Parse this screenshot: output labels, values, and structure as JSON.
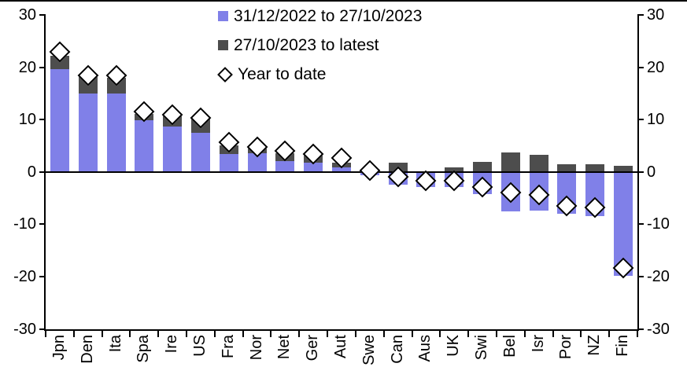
{
  "chart_data": {
    "type": "bar",
    "stacked": true,
    "title": "",
    "xlabel": "",
    "ylabel": "",
    "grid": false,
    "legend_position": "top-center",
    "axis_color": "#000000",
    "ylim": [
      -30,
      30
    ],
    "yticks": [
      30,
      20,
      10,
      0,
      -10,
      -20,
      -30
    ],
    "categories": [
      "Jpn",
      "Den",
      "Ita",
      "Spa",
      "Ire",
      "US",
      "Fra",
      "Nor",
      "Net",
      "Ger",
      "Aut",
      "Swe",
      "Can",
      "Aus",
      "UK",
      "Swi",
      "Bel",
      "Isr",
      "Por",
      "NZ",
      "Fin"
    ],
    "series": [
      {
        "name": "31/12/2022 to 27/10/2023",
        "color": "#8080E8",
        "values": [
          19.7,
          15.0,
          15.0,
          9.8,
          8.6,
          7.5,
          3.4,
          3.6,
          2.1,
          1.8,
          0.8,
          -0.7,
          -2.5,
          -2.9,
          -2.9,
          -4.3,
          -7.6,
          -7.4,
          -8.0,
          -8.4,
          -19.8
        ]
      },
      {
        "name": "27/10/2023 to latest",
        "color": "#4D4D4D",
        "values": [
          2.5,
          3.2,
          3.0,
          1.3,
          2.0,
          2.9,
          1.7,
          0.8,
          1.4,
          1.3,
          0.9,
          0.3,
          1.8,
          0.0,
          0.8,
          1.9,
          3.7,
          3.3,
          1.4,
          1.5,
          1.1
        ]
      }
    ],
    "markers": {
      "name": "Year to date",
      "shape": "diamond",
      "fill": "#FFFFFF",
      "border_color": "#000000",
      "values": [
        22.9,
        18.5,
        18.4,
        11.6,
        10.9,
        10.4,
        5.6,
        4.8,
        4.0,
        3.4,
        2.7,
        0.3,
        -0.9,
        -1.7,
        -1.7,
        -2.9,
        -3.9,
        -4.4,
        -6.5,
        -6.8,
        -18.4
      ]
    }
  }
}
